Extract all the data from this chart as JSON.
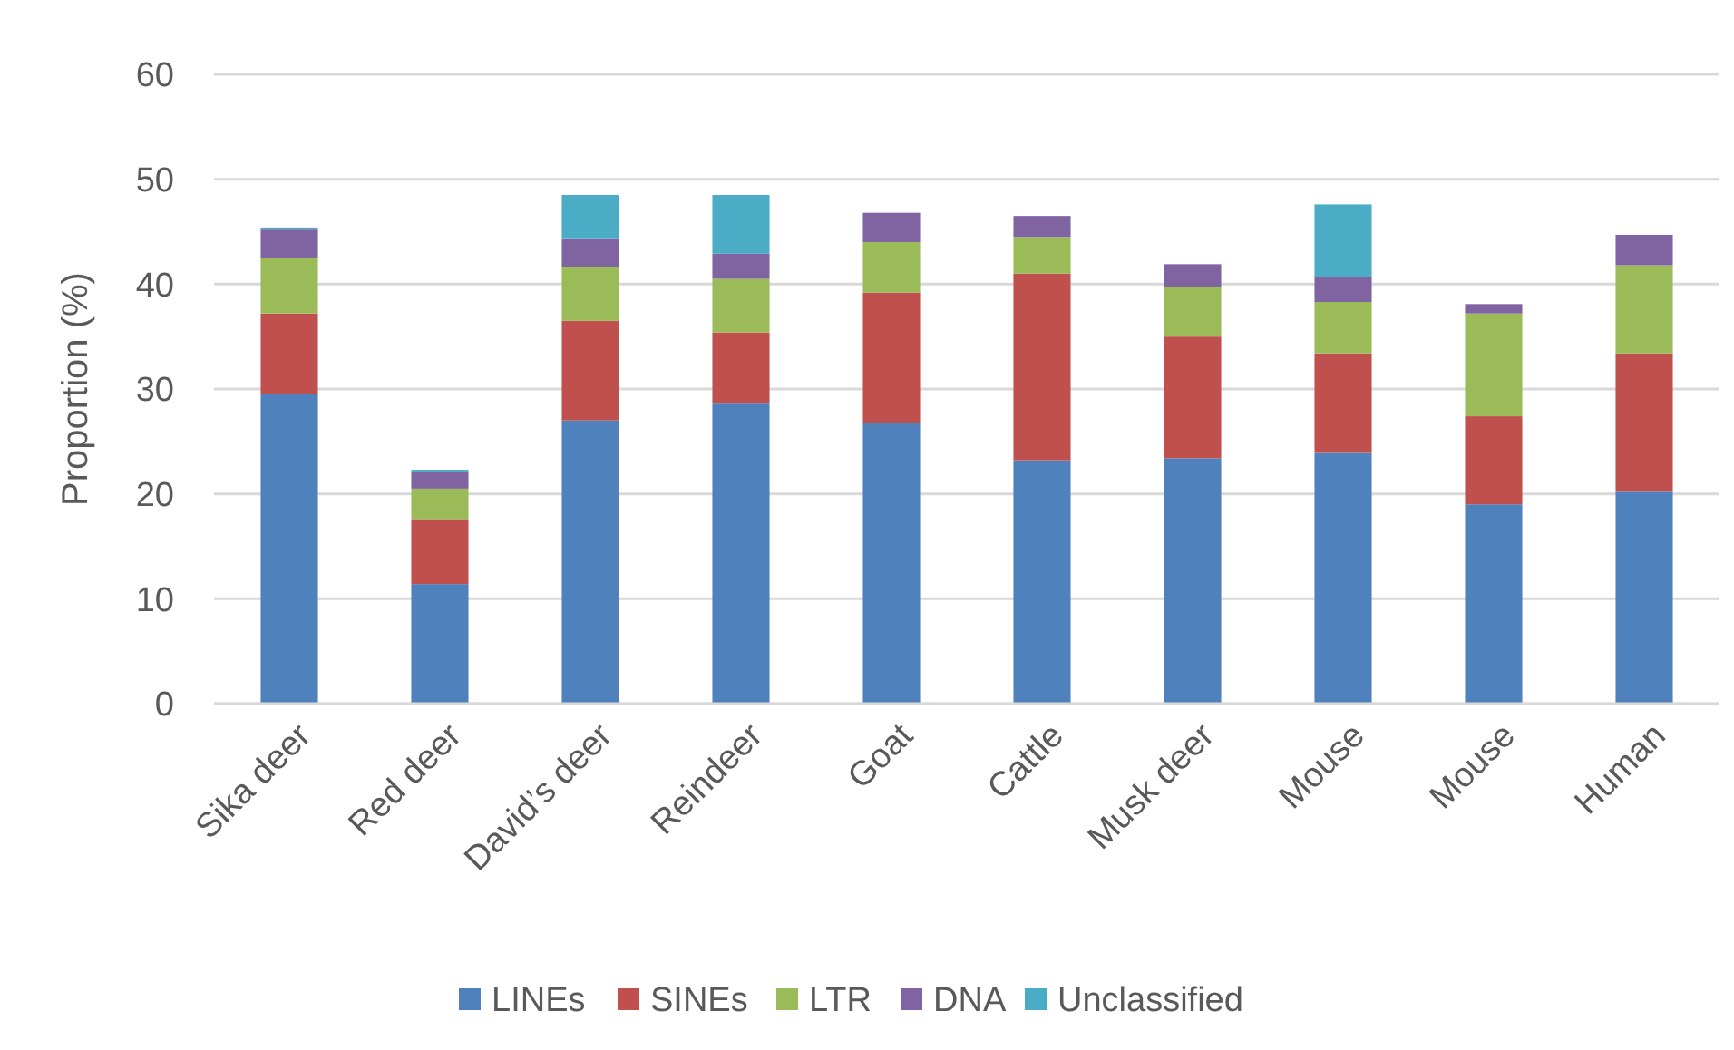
{
  "chart_data": {
    "type": "bar",
    "stacked": true,
    "ylabel": "Proportion (%)",
    "categories": [
      "Sika deer",
      "Red deer",
      "David’s deer",
      "Reindeer",
      "Goat",
      "Cattle",
      "Musk deer",
      "Mouse",
      "Mouse",
      "Human"
    ],
    "series": [
      {
        "name": "LINEs",
        "color": "#4f81bd",
        "values": [
          29.5,
          11.4,
          27.0,
          28.6,
          26.8,
          23.2,
          23.4,
          23.9,
          19.0,
          20.2
        ]
      },
      {
        "name": "SINEs",
        "color": "#c0504d",
        "values": [
          7.7,
          6.2,
          9.5,
          6.8,
          12.4,
          17.8,
          11.6,
          9.5,
          8.4,
          13.2
        ]
      },
      {
        "name": "LTR",
        "color": "#9bbb59",
        "values": [
          5.3,
          2.9,
          5.1,
          5.1,
          4.8,
          3.5,
          4.7,
          4.9,
          9.8,
          8.4
        ]
      },
      {
        "name": "DNA",
        "color": "#8064a2",
        "values": [
          2.7,
          1.6,
          2.7,
          2.4,
          2.8,
          2.0,
          2.2,
          2.4,
          0.9,
          2.9
        ]
      },
      {
        "name": "Unclassified",
        "color": "#4bacc6",
        "values": [
          0.2,
          0.2,
          4.2,
          5.6,
          null,
          null,
          null,
          6.9,
          null,
          null
        ]
      }
    ],
    "ylim": [
      0,
      60
    ],
    "yticks": [
      0,
      10,
      20,
      30,
      40,
      50,
      60
    ],
    "grid": "y",
    "legend": "bottom"
  }
}
